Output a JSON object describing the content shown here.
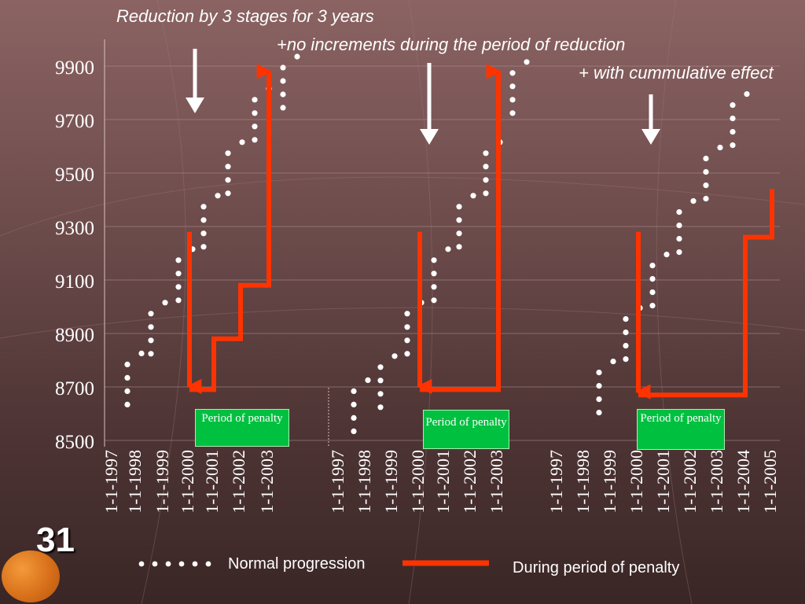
{
  "captions": {
    "line1": "Reduction by 3 stages for 3 years",
    "line2": "+no increments during the period of reduction",
    "line3": "+ with cummulative effect"
  },
  "penalty_boxes": [
    "Period of penalty",
    "Period of penalty",
    "Period of penalty"
  ],
  "slide_number": "31",
  "legend": {
    "normal": "Normal progression",
    "penalty": "During period of penalty"
  },
  "colors": {
    "penalty_line": "#ff3300",
    "normal_dots": "#ffffff",
    "penalty_box": "#00c040"
  },
  "chart_data": {
    "type": "line",
    "ylim": [
      8500,
      9900
    ],
    "yticks": [
      8500,
      8700,
      8900,
      9100,
      9300,
      9500,
      9700,
      9900
    ],
    "panels": [
      {
        "x": [
          "1-1-1997",
          "1-1-1998",
          "1-1-1999",
          "1-1-2000",
          "1-1-2001",
          "1-1-2002",
          "1-1-2003"
        ],
        "series": [
          {
            "name": "Normal progression",
            "values": [
              8790,
              8980,
              9180,
              9380,
              9580,
              9780,
              9900
            ]
          },
          {
            "name": "During period of penalty",
            "values": [
              null,
              null,
              null,
              8690,
              8880,
              9080,
              9880
            ]
          }
        ]
      },
      {
        "x": [
          "1-1-1997",
          "1-1-1998",
          "1-1-1999",
          "1-1-2000",
          "1-1-2001",
          "1-1-2002",
          "1-1-2003"
        ],
        "series": [
          {
            "name": "Normal progression",
            "values": [
              8690,
              8780,
              8980,
              9180,
              9380,
              9580,
              9880
            ]
          },
          {
            "name": "During period of penalty",
            "values": [
              null,
              null,
              null,
              8690,
              8690,
              8690,
              9880
            ]
          }
        ]
      },
      {
        "x": [
          "1-1-1997",
          "1-1-1998",
          "1-1-1999",
          "1-1-2000",
          "1-1-2001",
          "1-1-2002",
          "1-1-2003",
          "1-1-2004",
          "1-1-2005"
        ],
        "series": [
          {
            "name": "Normal progression",
            "values": [
              null,
              8760,
              8960,
              9160,
              9360,
              9560,
              9760,
              null,
              null
            ]
          },
          {
            "name": "During period of penalty",
            "values": [
              null,
              null,
              null,
              8670,
              8670,
              8670,
              8670,
              9260,
              9440
            ]
          }
        ]
      }
    ]
  }
}
